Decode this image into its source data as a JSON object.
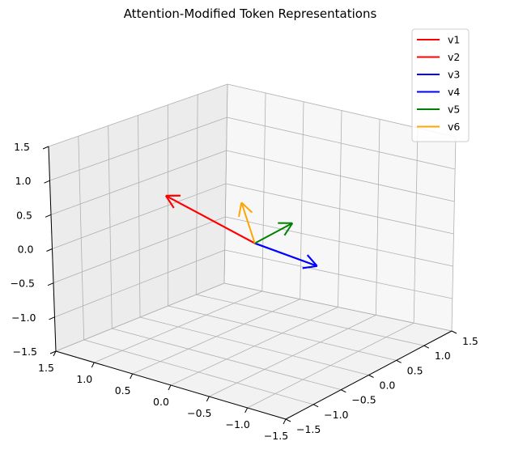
{
  "chart_data": {
    "type": "3d-quiver",
    "title": "Attention-Modified Token Representations",
    "xlabel": "",
    "ylabel": "",
    "zlabel": "",
    "xlim": [
      -1.5,
      1.5
    ],
    "ylim": [
      -1.5,
      1.5
    ],
    "zlim": [
      -1.5,
      1.5
    ],
    "x_ticks": [
      "−1.5",
      "−1.0",
      "−0.5",
      "0.0",
      "0.5",
      "1.0",
      "1.5"
    ],
    "y_ticks": [
      "−1.5",
      "−1.0",
      "−0.5",
      "0.0",
      "0.5",
      "1.0",
      "1.5"
    ],
    "z_ticks": [
      "−1.5",
      "−1.0",
      "−0.5",
      "0.0",
      "0.5",
      "1.0",
      "1.5"
    ],
    "grid": true,
    "legend_position": "top-right",
    "origin": [
      0,
      0,
      0
    ],
    "series": [
      {
        "name": "v1",
        "color": "#ff0000",
        "vector": [
          -0.2,
          1.0,
          0.5
        ]
      },
      {
        "name": "v2",
        "color": "#ff0000",
        "vector": [
          -0.2,
          1.0,
          0.5
        ]
      },
      {
        "name": "v3",
        "color": "#0000ff",
        "vector": [
          0.7,
          -0.3,
          -0.5
        ]
      },
      {
        "name": "v4",
        "color": "#0000ff",
        "vector": [
          0.7,
          -0.3,
          -0.5
        ]
      },
      {
        "name": "v5",
        "color": "#008000",
        "vector": [
          0.8,
          0.1,
          0.0
        ]
      },
      {
        "name": "v6",
        "color": "#ffa500",
        "vector": [
          -0.1,
          0.1,
          0.6
        ]
      }
    ]
  }
}
